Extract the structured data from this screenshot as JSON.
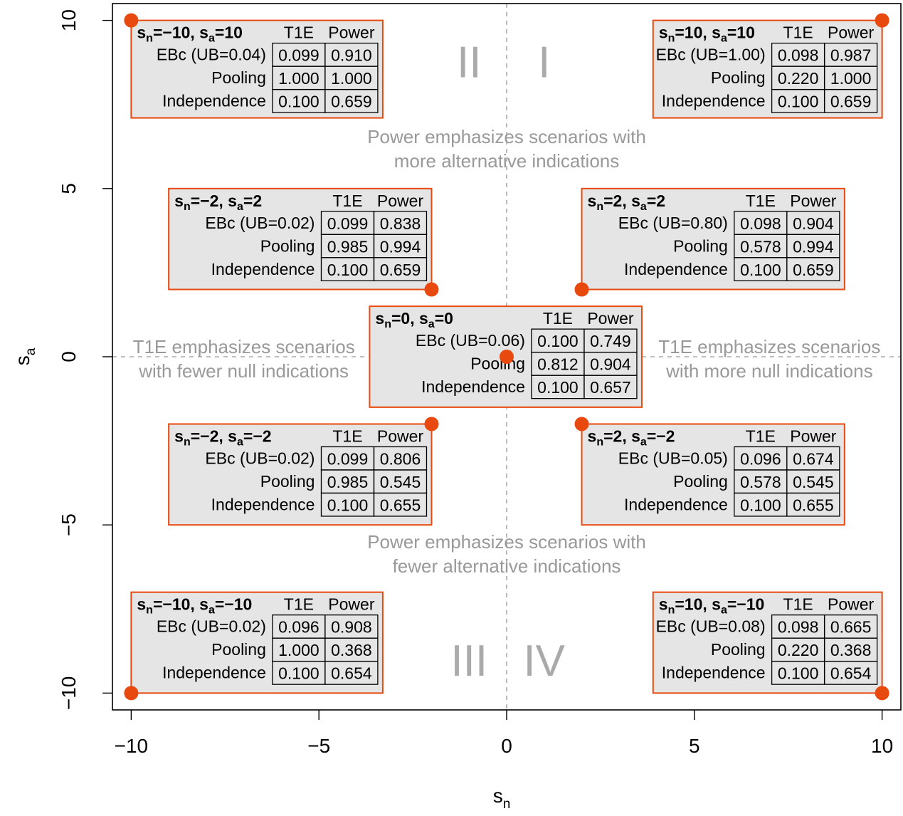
{
  "chart_data": {
    "type": "scatter",
    "xlabel": "s",
    "xlabel_sub": "n",
    "ylabel": "s",
    "ylabel_sub": "a",
    "xlim": [
      -10.5,
      10.5
    ],
    "ylim": [
      -10.5,
      10.5
    ],
    "x_ticks": [
      -10,
      -5,
      0,
      5,
      10
    ],
    "x_tick_labels": [
      "−10",
      "−5",
      "0",
      "5",
      "10"
    ],
    "y_ticks": [
      -10,
      -5,
      0,
      5,
      10
    ],
    "y_tick_labels": [
      "−10",
      "−5",
      "0",
      "5",
      "10"
    ],
    "point_color": "#e8490f",
    "box_border_color": "#e8490f",
    "box_fill_color": "#e5e5e5",
    "annotation_color": "#999999",
    "quadrant_labels": [
      {
        "label": "II",
        "x": -1,
        "y": 8.8
      },
      {
        "label": "I",
        "x": 1,
        "y": 8.8
      },
      {
        "label": "III",
        "x": -1,
        "y": -9.0
      },
      {
        "label": "IV",
        "x": 1,
        "y": -9.0
      }
    ],
    "annotations": [
      {
        "lines": [
          "Power emphasizes scenarios with",
          "more alternative indications"
        ],
        "x": 0,
        "y": 6.25
      },
      {
        "lines": [
          "Power emphasizes scenarios with",
          "fewer alternative indications"
        ],
        "x": 0,
        "y": -5.8
      },
      {
        "lines": [
          "T1E emphasizes scenarios",
          "with fewer null indications"
        ],
        "x": -7.0,
        "y": 0
      },
      {
        "lines": [
          "T1E emphasizes scenarios",
          "with more null indications"
        ],
        "x": 7.0,
        "y": 0
      }
    ],
    "column_headers": [
      "T1E",
      "Power"
    ],
    "row_labels": [
      "Pooling",
      "Independence"
    ],
    "scenarios": [
      {
        "sn": "−10",
        "sa": "10",
        "x": -10,
        "y": 10,
        "ebc": "EBc (UB=0.04)",
        "values": [
          [
            "0.099",
            "0.910"
          ],
          [
            "1.000",
            "1.000"
          ],
          [
            "0.100",
            "0.659"
          ]
        ],
        "box": [
          -10,
          -3.3,
          7.1,
          10
        ]
      },
      {
        "sn": "10",
        "sa": "10",
        "x": 10,
        "y": 10,
        "ebc": "EBc (UB=1.00)",
        "values": [
          [
            "0.098",
            "0.987"
          ],
          [
            "0.220",
            "1.000"
          ],
          [
            "0.100",
            "0.659"
          ]
        ],
        "box": [
          3.9,
          10,
          7.1,
          10
        ]
      },
      {
        "sn": "−2",
        "sa": "2",
        "x": -2,
        "y": 2,
        "ebc": "EBc (UB=0.02)",
        "values": [
          [
            "0.099",
            "0.838"
          ],
          [
            "0.985",
            "0.994"
          ],
          [
            "0.100",
            "0.659"
          ]
        ],
        "box": [
          -9.0,
          -2,
          2,
          5
        ]
      },
      {
        "sn": "2",
        "sa": "2",
        "x": 2,
        "y": 2,
        "ebc": "EBc (UB=0.80)",
        "values": [
          [
            "0.098",
            "0.904"
          ],
          [
            "0.578",
            "0.994"
          ],
          [
            "0.100",
            "0.659"
          ]
        ],
        "box": [
          2,
          9.0,
          2,
          5
        ]
      },
      {
        "sn": "0",
        "sa": "0",
        "x": 0,
        "y": 0,
        "ebc": "EBc (UB=0.06)",
        "values": [
          [
            "0.100",
            "0.749"
          ],
          [
            "0.812",
            "0.904"
          ],
          [
            "0.100",
            "0.657"
          ]
        ],
        "box": [
          -3.65,
          3.6,
          -1.5,
          1.5
        ]
      },
      {
        "sn": "−2",
        "sa": "−2",
        "x": -2,
        "y": -2,
        "ebc": "EBc (UB=0.02)",
        "values": [
          [
            "0.099",
            "0.806"
          ],
          [
            "0.985",
            "0.545"
          ],
          [
            "0.100",
            "0.655"
          ]
        ],
        "box": [
          -9.0,
          -2,
          -5,
          -2
        ]
      },
      {
        "sn": "2",
        "sa": "−2",
        "x": 2,
        "y": -2,
        "ebc": "EBc (UB=0.05)",
        "values": [
          [
            "0.096",
            "0.674"
          ],
          [
            "0.578",
            "0.545"
          ],
          [
            "0.100",
            "0.655"
          ]
        ],
        "box": [
          2,
          9.0,
          -5,
          -2
        ]
      },
      {
        "sn": "−10",
        "sa": "−10",
        "x": -10,
        "y": -10,
        "ebc": "EBc (UB=0.02)",
        "values": [
          [
            "0.096",
            "0.908"
          ],
          [
            "1.000",
            "0.368"
          ],
          [
            "0.100",
            "0.654"
          ]
        ],
        "box": [
          -10,
          -3.3,
          -10,
          -7.0
        ]
      },
      {
        "sn": "10",
        "sa": "−10",
        "x": 10,
        "y": -10,
        "ebc": "EBc (UB=0.08)",
        "values": [
          [
            "0.098",
            "0.665"
          ],
          [
            "0.220",
            "0.368"
          ],
          [
            "0.100",
            "0.654"
          ]
        ],
        "box": [
          3.9,
          10,
          -10,
          -7.0
        ]
      }
    ]
  }
}
